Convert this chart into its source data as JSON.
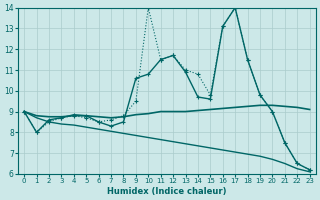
{
  "xlabel": "Humidex (Indice chaleur)",
  "x": [
    0,
    1,
    2,
    3,
    4,
    5,
    6,
    7,
    8,
    9,
    10,
    11,
    12,
    13,
    14,
    15,
    16,
    17,
    18,
    19,
    20,
    21,
    22,
    23
  ],
  "line_dotted": [
    9.0,
    8.0,
    8.5,
    8.7,
    8.8,
    8.7,
    8.5,
    8.6,
    8.8,
    9.5,
    14.0,
    11.5,
    11.7,
    11.0,
    10.8,
    9.8,
    13.1,
    14.0,
    11.5,
    9.8,
    9.0,
    7.5,
    6.5,
    6.2
  ],
  "line_solid": [
    9.0,
    8.0,
    8.6,
    8.7,
    8.85,
    8.8,
    8.5,
    8.3,
    8.5,
    10.6,
    10.8,
    11.5,
    11.7,
    10.9,
    9.7,
    9.6,
    13.1,
    14.0,
    11.5,
    9.8,
    9.0,
    7.5,
    6.5,
    6.2
  ],
  "line_flat": [
    9.0,
    8.8,
    8.75,
    8.75,
    8.8,
    8.8,
    8.75,
    8.7,
    8.75,
    8.85,
    8.9,
    9.0,
    9.0,
    9.0,
    9.05,
    9.1,
    9.15,
    9.2,
    9.25,
    9.3,
    9.3,
    9.25,
    9.2,
    9.1
  ],
  "line_decline": [
    9.0,
    8.7,
    8.5,
    8.4,
    8.35,
    8.25,
    8.15,
    8.05,
    7.95,
    7.85,
    7.75,
    7.65,
    7.55,
    7.45,
    7.35,
    7.25,
    7.15,
    7.05,
    6.95,
    6.85,
    6.7,
    6.5,
    6.25,
    6.1
  ],
  "color": "#006666",
  "bg_color": "#cce8e8",
  "grid_color": "#aacccc",
  "ylim": [
    6,
    14
  ],
  "yticks": [
    6,
    7,
    8,
    9,
    10,
    11,
    12,
    13,
    14
  ],
  "xticks": [
    0,
    1,
    2,
    3,
    4,
    5,
    6,
    7,
    8,
    9,
    10,
    11,
    12,
    13,
    14,
    15,
    16,
    17,
    18,
    19,
    20,
    21,
    22,
    23
  ],
  "figsize": [
    3.2,
    2.0
  ],
  "dpi": 100
}
